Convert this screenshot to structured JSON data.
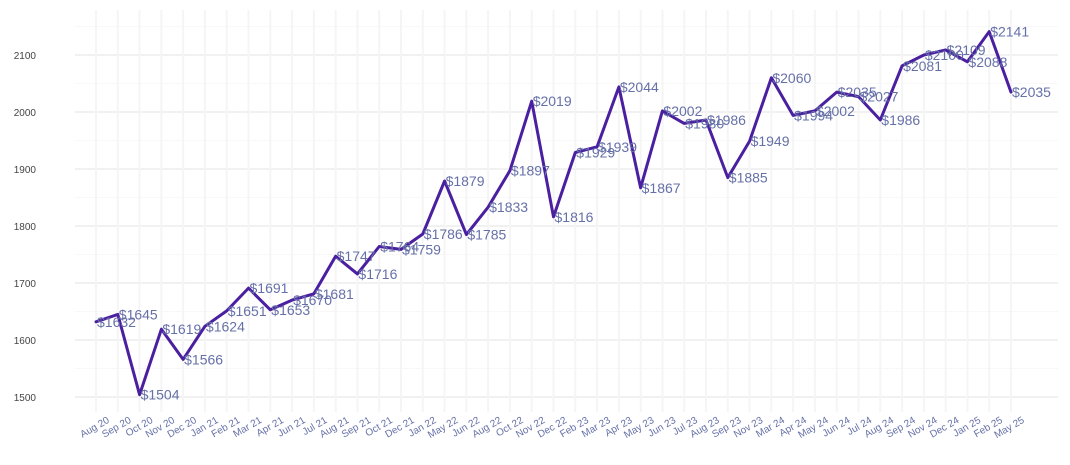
{
  "chart_data": {
    "type": "line",
    "title": "",
    "xlabel": "",
    "ylabel": "",
    "ylim": [
      1480,
      2160
    ],
    "yticks": [
      1500,
      1600,
      1700,
      1800,
      1900,
      2000,
      2100
    ],
    "grid": true,
    "line_color": "#4a1fa0",
    "label_color": "#6670a8",
    "label_prefix": "$",
    "categories": [
      "Aug 20",
      "Sep 20",
      "Oct 20",
      "Nov 20",
      "Dec 20",
      "Jan 21",
      "Feb 21",
      "Mar 21",
      "Apr 21",
      "Jun 21",
      "Jul 21",
      "Aug 21",
      "Sep 21",
      "Oct 21",
      "Dec 21",
      "Jan 22",
      "May 22",
      "Jun 22",
      "Aug 22",
      "Oct 22",
      "Nov 22",
      "Dec 22",
      "Feb 23",
      "Mar 23",
      "Apr 23",
      "May 23",
      "Jun 23",
      "Jul 23",
      "Aug 23",
      "Sep 23",
      "Nov 23",
      "Mar 24",
      "Apr 24",
      "May 24",
      "Jun 24",
      "Jul 24",
      "Aug 24",
      "Sep 24",
      "Nov 24",
      "Dec 24",
      "Jan 25",
      "Feb 25",
      "May 25"
    ],
    "values": [
      1632,
      1645,
      1504,
      1619,
      1566,
      1624,
      1651,
      1691,
      1653,
      1670,
      1681,
      1747,
      1716,
      1764,
      1759,
      1786,
      1879,
      1785,
      1833,
      1897,
      2019,
      1816,
      1929,
      1939,
      2044,
      1867,
      2002,
      1980,
      1986,
      1885,
      1949,
      2060,
      1994,
      2002,
      2035,
      2027,
      1986,
      2081,
      2100,
      2109,
      2088,
      2141,
      2035
    ]
  }
}
